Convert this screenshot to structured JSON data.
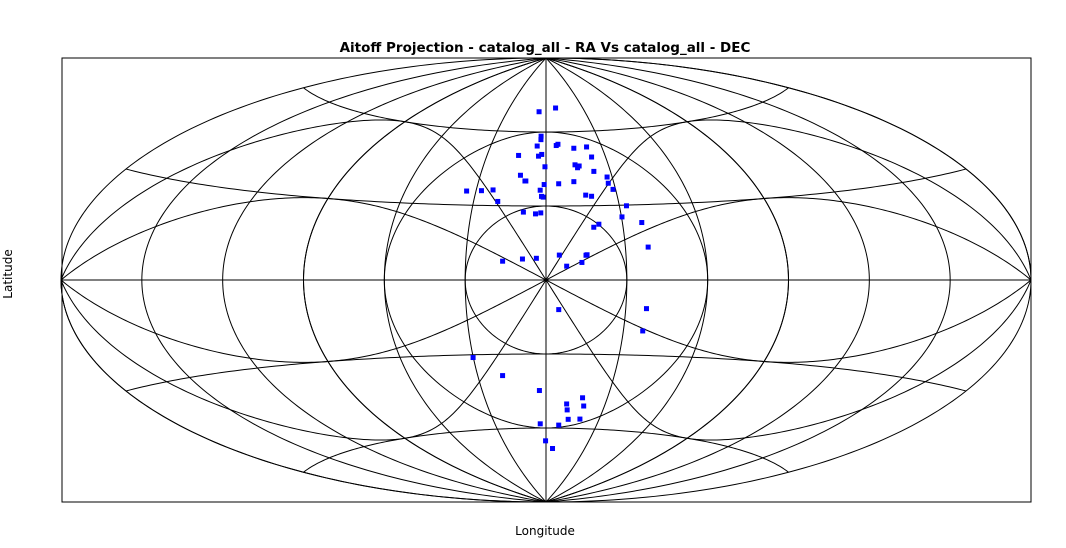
{
  "chart_data": {
    "type": "scatter",
    "projection": "aitoff",
    "title": "Aitoff Projection - catalog_all - RA   Vs  catalog_all - DEC",
    "xlabel": "Longitude",
    "ylabel": "Latitude",
    "grid": true,
    "legend": "none",
    "marker_color": "#0000ff",
    "grid_color": "#000000",
    "series": [
      {
        "points": [
          [
            -5.4,
            68.2
          ],
          [
            7.9,
            69.7
          ],
          [
            -2.9,
            58.3
          ],
          [
            -2.9,
            56.9
          ],
          [
            -4.8,
            54.3
          ],
          [
            5.6,
            54.5
          ],
          [
            6.6,
            55.0
          ],
          [
            -14.0,
            50.4
          ],
          [
            -3.8,
            50.2
          ],
          [
            -2.2,
            50.9
          ],
          [
            -0.5,
            45.9
          ],
          [
            -11.7,
            42.4
          ],
          [
            -9.4,
            40.1
          ],
          [
            -9.0,
            40.1
          ],
          [
            -0.8,
            38.7
          ],
          [
            -2.5,
            36.4
          ],
          [
            -1.9,
            33.9
          ],
          [
            -1.2,
            33.6
          ],
          [
            -2.1,
            27.2
          ],
          [
            -4.2,
            26.8
          ],
          [
            -9.1,
            27.5
          ],
          [
            5.6,
            39.0
          ],
          [
            14.9,
            53.3
          ],
          [
            21.9,
            53.7
          ],
          [
            23.0,
            49.6
          ],
          [
            14.0,
            46.6
          ],
          [
            15.9,
            46.1
          ],
          [
            15.0,
            45.4
          ],
          [
            22.3,
            43.8
          ],
          [
            12.4,
            39.8
          ],
          [
            27.7,
            41.4
          ],
          [
            27.5,
            38.9
          ],
          [
            28.9,
            36.4
          ],
          [
            16.8,
            34.3
          ],
          [
            19.2,
            33.8
          ],
          [
            32.9,
            29.7
          ],
          [
            30.2,
            25.3
          ],
          [
            20.7,
            22.5
          ],
          [
            18.6,
            21.3
          ],
          [
            37.6,
            22.9
          ],
          [
            38.6,
            13.1
          ],
          [
            13.4,
            7.1
          ],
          [
            15.4,
            10.2
          ],
          [
            15.0,
            10.0
          ],
          [
            5.0,
            10.1
          ],
          [
            7.7,
            5.6
          ],
          [
            -34.0,
            35.6
          ],
          [
            -27.7,
            35.9
          ],
          [
            -22.8,
            36.3
          ],
          [
            -20.0,
            31.7
          ],
          [
            -16.2,
            7.6
          ],
          [
            -8.8,
            8.5
          ],
          [
            -3.6,
            8.8
          ],
          [
            -30.1,
            -31.1
          ],
          [
            -19.1,
            -38.6
          ],
          [
            -3.1,
            -44.8
          ],
          [
            -3.4,
            -58.3
          ],
          [
            -0.3,
            -65.2
          ],
          [
            5.1,
            -68.3
          ],
          [
            7.6,
            -58.8
          ],
          [
            10.5,
            -50.2
          ],
          [
            11.2,
            -52.6
          ],
          [
            12.6,
            -56.4
          ],
          [
            17.9,
            -47.6
          ],
          [
            19.4,
            -50.9
          ],
          [
            19.2,
            -56.2
          ],
          [
            4.8,
            -12.0
          ],
          [
            37.8,
            -11.4
          ],
          [
            37.5,
            -20.3
          ]
        ]
      }
    ]
  }
}
